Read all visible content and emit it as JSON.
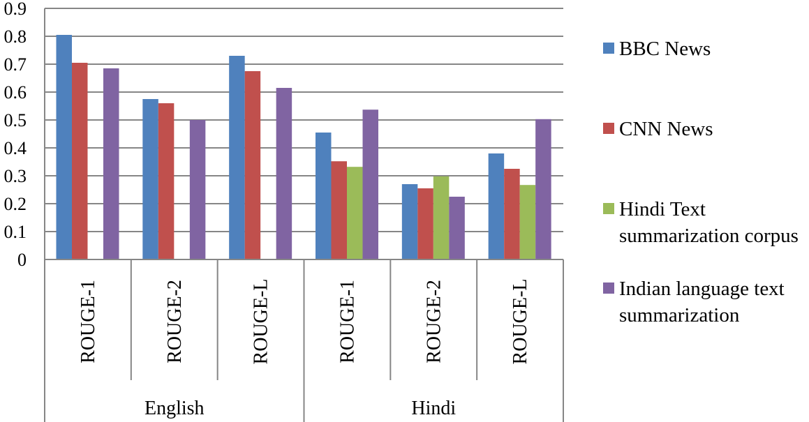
{
  "chart_data": {
    "type": "bar",
    "groups": [
      {
        "label": "English",
        "categories": [
          "ROUGE-1",
          "ROUGE-2",
          "ROUGE-L"
        ]
      },
      {
        "label": "Hindi",
        "categories": [
          "ROUGE-1",
          "ROUGE-2",
          "ROUGE-L"
        ]
      }
    ],
    "series": [
      {
        "name_lines": [
          "BBC News"
        ],
        "color": "#4f81bd",
        "values": [
          0.805,
          0.575,
          0.73,
          0.455,
          0.27,
          0.38
        ]
      },
      {
        "name_lines": [
          "CNN News"
        ],
        "color": "#c0504d",
        "values": [
          0.705,
          0.56,
          0.675,
          0.352,
          0.255,
          0.325
        ]
      },
      {
        "name_lines": [
          "Hindi Text",
          "summarization corpus"
        ],
        "color": "#9bbb59",
        "values": [
          null,
          null,
          null,
          0.332,
          0.298,
          0.267
        ]
      },
      {
        "name_lines": [
          "Indian language text",
          "summarization"
        ],
        "color": "#8064a2",
        "values": [
          0.685,
          0.5,
          0.615,
          0.537,
          0.225,
          0.503
        ]
      }
    ],
    "ylim": [
      0,
      0.9
    ],
    "yticks": [
      "0",
      "0.1",
      "0.2",
      "0.3",
      "0.4",
      "0.5",
      "0.6",
      "0.7",
      "0.8",
      "0.9"
    ],
    "grid": true,
    "legend_position": "right"
  }
}
